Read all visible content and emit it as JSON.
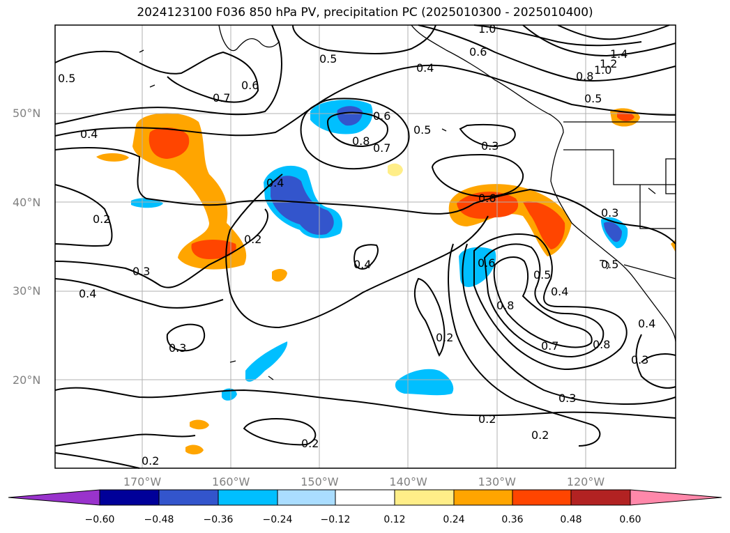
{
  "title": "2024123100 F036 850 hPa PV, precipitation PC (2025010300 - 2025010400)",
  "lat_labels": [
    {
      "text": "50°N",
      "lat": 50
    },
    {
      "text": "40°N",
      "lat": 40
    },
    {
      "text": "30°N",
      "lat": 30
    },
    {
      "text": "20°N",
      "lat": 20
    }
  ],
  "lon_labels": [
    {
      "text": "170°W",
      "lon": -170
    },
    {
      "text": "160°W",
      "lon": -160
    },
    {
      "text": "150°W",
      "lon": -150
    },
    {
      "text": "140°W",
      "lon": -140
    },
    {
      "text": "130°W",
      "lon": -130
    },
    {
      "text": "120°W",
      "lon": -120
    }
  ],
  "colorbar": {
    "ticks": [
      "−0.60",
      "−0.48",
      "−0.36",
      "−0.24",
      "−0.12",
      "0.12",
      "0.24",
      "0.36",
      "0.48",
      "0.60"
    ],
    "colors": {
      "under": "#9933cc",
      "b1": "#000099",
      "b2": "#3355cc",
      "b3": "#00bfff",
      "b4": "#aaddff",
      "b5": "#ffffff",
      "b6": "#ffee88",
      "b7": "#ffa500",
      "b8": "#ff4500",
      "b9": "#b22222",
      "over": "#ff88aa"
    }
  },
  "contour_labels": [
    "1.0",
    "1.4",
    "1.2",
    "1.0",
    "0.8",
    "0.5",
    "0.6",
    "0.4",
    "0.5",
    "0.5",
    "0.7",
    "0.6",
    "0.4",
    "0.6",
    "0.8",
    "0.7",
    "0.5",
    "0.3",
    "0.4",
    "0.6",
    "0.2",
    "0.2",
    "0.3",
    "0.3",
    "0.4",
    "0.4",
    "0.6",
    "0.5",
    "0.5",
    "0.4",
    "0.8",
    "0.3",
    "0.4",
    "0.2",
    "0.7",
    "0.8",
    "0.3",
    "0.3",
    "0.2",
    "0.2",
    "0.2",
    "0.2"
  ],
  "colors": {
    "grid": "#b0b0b0",
    "contour": "#000000",
    "coast": "#000000"
  }
}
